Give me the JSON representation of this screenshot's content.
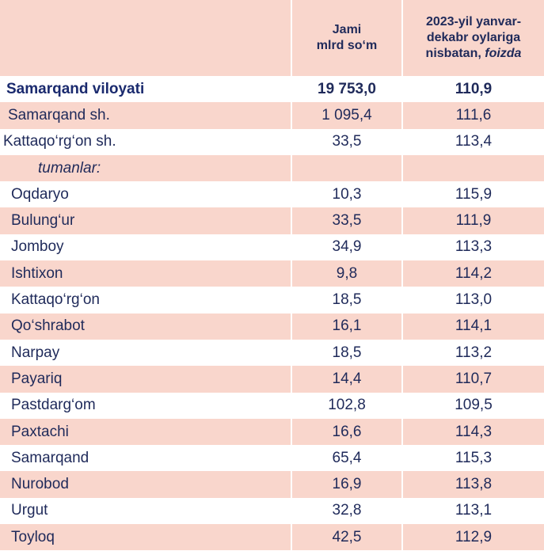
{
  "header": {
    "col1": "",
    "col2_line1": "Jami",
    "col2_line2": "mlrd so‘m",
    "col3_line1": "2023-yil yanvar-",
    "col3_line2": "dekabr oylariga",
    "col3_line3": "nisbatan, ",
    "col3_italic": "foizda"
  },
  "rows": [
    {
      "name": "Samarqand viloyati",
      "total": "19 753,0",
      "percent": "110,9"
    },
    {
      "name": "Samarqand sh.",
      "total": "1 095,4",
      "percent": "111,6"
    },
    {
      "name": "Kattaqo‘rg‘on sh.",
      "total": "33,5",
      "percent": "113,4"
    },
    {
      "name": "tumanlar:",
      "total": "",
      "percent": ""
    },
    {
      "name": "Oqdaryo",
      "total": "10,3",
      "percent": "115,9"
    },
    {
      "name": "Bulung‘ur",
      "total": "33,5",
      "percent": "111,9"
    },
    {
      "name": "Jomboy",
      "total": "34,9",
      "percent": "113,3"
    },
    {
      "name": "Ishtixon",
      "total": "9,8",
      "percent": "114,2"
    },
    {
      "name": "Kattaqo‘rg‘on",
      "total": "18,5",
      "percent": "113,0"
    },
    {
      "name": "Qo‘shrabot",
      "total": "16,1",
      "percent": "114,1"
    },
    {
      "name": "Narpay",
      "total": "18,5",
      "percent": "113,2"
    },
    {
      "name": "Payariq",
      "total": "14,4",
      "percent": "110,7"
    },
    {
      "name": "Pastdarg‘om",
      "total": "102,8",
      "percent": "109,5"
    },
    {
      "name": "Paxtachi",
      "total": "16,6",
      "percent": "114,3"
    },
    {
      "name": "Samarqand",
      "total": "65,4",
      "percent": "115,3"
    },
    {
      "name": "Nurobod",
      "total": "16,9",
      "percent": "113,8"
    },
    {
      "name": "Urgut",
      "total": "32,8",
      "percent": "113,1"
    },
    {
      "name": "Toyloq",
      "total": "42,5",
      "percent": "112,9"
    }
  ]
}
